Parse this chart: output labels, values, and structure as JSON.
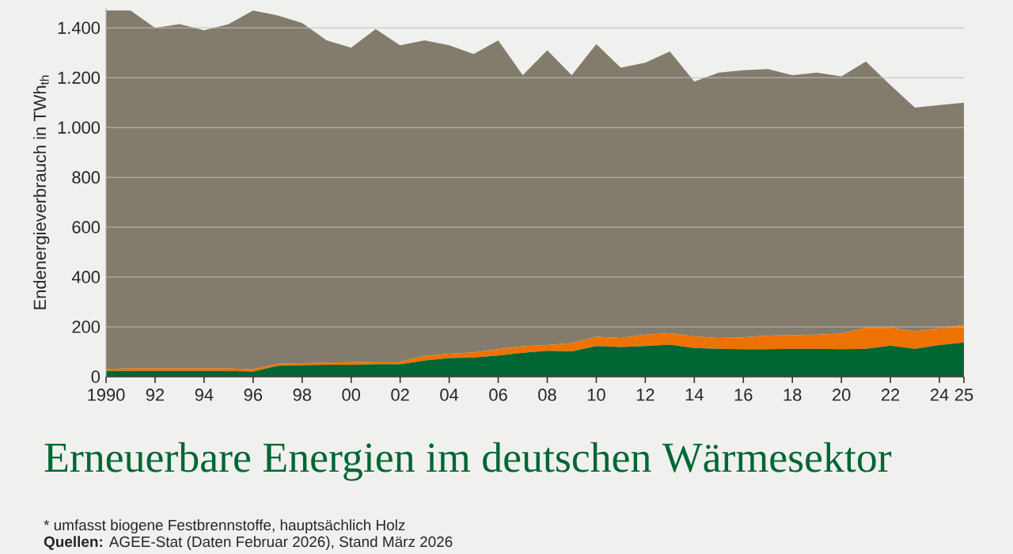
{
  "chart_data": {
    "type": "area",
    "stacked": true,
    "grid": "y",
    "title": "Erneuerbare Energien im deutschen Wärmesektor",
    "ylabel": "Endenergieverbrauch in TWh$_{th}$",
    "annotations": [
      "* umfasst biogene Festbrennstoffe, hauptsächlich Holz",
      "**Quellen:** AGEE-Stat (Daten Februar 2026), Stand März 2026"
    ],
    "x": [
      1990,
      1991,
      1992,
      1993,
      1994,
      1995,
      1996,
      1997,
      1998,
      1999,
      2000,
      2001,
      2002,
      2003,
      2004,
      2005,
      2006,
      2007,
      2008,
      2009,
      2010,
      2011,
      2012,
      2013,
      2014,
      2015,
      2016,
      2017,
      2018,
      2019,
      2020,
      2021,
      2022,
      2023,
      2024,
      2025
    ],
    "xlim": [
      1990,
      2025
    ],
    "xticks": [
      1990,
      {
        "value": 1992,
        "label": "92"
      },
      {
        "value": 1994,
        "label": "94"
      },
      {
        "value": 1996,
        "label": "96"
      },
      {
        "value": 1998,
        "label": "98"
      },
      {
        "value": 2000,
        "label": "00"
      },
      {
        "value": 2002,
        "label": "02"
      },
      {
        "value": 2004,
        "label": "04"
      },
      {
        "value": 2006,
        "label": "06"
      },
      {
        "value": 2008,
        "label": "08"
      },
      {
        "value": 2010,
        "label": "10"
      },
      {
        "value": 2012,
        "label": "12"
      },
      {
        "value": 2014,
        "label": "14"
      },
      {
        "value": 2016,
        "label": "16"
      },
      {
        "value": 2018,
        "label": "18"
      },
      {
        "value": 2020,
        "label": "20"
      },
      {
        "value": 2022,
        "label": "22"
      },
      {
        "value": 2024,
        "label": "24"
      },
      {
        "value": 2025,
        "label": "25"
      }
    ],
    "ylim": [
      0,
      1480
    ],
    "yticks": [
      0,
      200,
      400,
      600,
      800,
      {
        "value": 1000,
        "label": "1.000"
      },
      {
        "value": 1200,
        "label": "1.200"
      },
      {
        "value": 1400,
        "label": "1.400"
      }
    ],
    "series": [
      {
        "color": "#006633",
        "values": [
          23,
          23,
          23,
          23,
          23,
          23,
          21,
          44,
          46,
          48,
          48,
          50,
          50,
          65,
          75,
          77,
          85,
          96,
          104,
          102,
          123,
          119,
          123,
          129,
          115,
          112,
          110,
          110,
          112,
          112,
          110,
          112,
          125,
          112,
          127,
          137
        ]
      },
      {
        "color": "#ee7203",
        "values": [
          8,
          10,
          10,
          10,
          10,
          10,
          8,
          8,
          8,
          8,
          10,
          10,
          10,
          18,
          17,
          21,
          25,
          26,
          23,
          33,
          37,
          37,
          46,
          46,
          47,
          44,
          48,
          55,
          55,
          57,
          63,
          84,
          71,
          71,
          67,
          71
        ]
      },
      {
        "color": "#837c6c",
        "values": [
          1439,
          1437,
          1367,
          1382,
          1357,
          1382,
          1441,
          1398,
          1366,
          1294,
          1262,
          1335,
          1270,
          1267,
          1238,
          1197,
          1240,
          1088,
          1183,
          1075,
          1175,
          1084,
          1091,
          1130,
          1023,
          1064,
          1072,
          1070,
          1043,
          1051,
          1032,
          1069,
          974,
          897,
          896,
          892
        ]
      }
    ]
  }
}
